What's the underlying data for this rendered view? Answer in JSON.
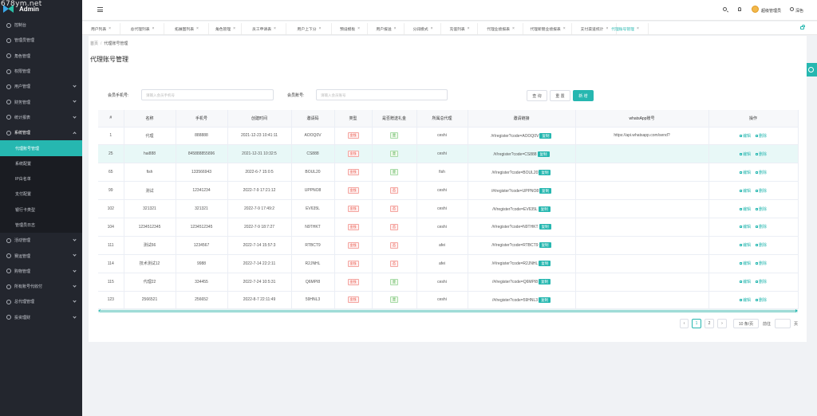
{
  "watermark": "678ym.net",
  "app": {
    "logo_text": "Admin"
  },
  "sidebar": {
    "items": [
      {
        "label": "控制台",
        "chevron": false
      },
      {
        "label": "管理员管理",
        "chevron": false
      },
      {
        "label": "角色管理",
        "chevron": false
      },
      {
        "label": "权限管理",
        "chevron": false
      },
      {
        "label": "用户管理",
        "chevron": true
      },
      {
        "label": "财务管理",
        "chevron": true
      },
      {
        "label": "统计报表",
        "chevron": true
      },
      {
        "label": "系统管理",
        "chevron": true,
        "open": true
      }
    ],
    "submenu": [
      {
        "label": "代理账号管理",
        "active": true
      },
      {
        "label": "系统配置"
      },
      {
        "label": "IP白名单"
      },
      {
        "label": "支付配置"
      },
      {
        "label": "银行卡类型"
      },
      {
        "label": "管理员日志"
      }
    ],
    "items_after": [
      {
        "label": "活动管理",
        "chevron": true
      },
      {
        "label": "赛运管理",
        "chevron": true
      },
      {
        "label": "购物管理",
        "chevron": true
      },
      {
        "label": "所有账号代收付",
        "chevron": true
      },
      {
        "label": "总代理管理",
        "chevron": true
      },
      {
        "label": "投资理财",
        "chevron": true
      }
    ]
  },
  "header": {
    "user": "超级管理员",
    "theme": "深色"
  },
  "tabs": [
    {
      "label": "用户列表",
      "active": false
    },
    {
      "label": "总代理列表",
      "active": false
    },
    {
      "label": "拓展图列表",
      "active": false
    },
    {
      "label": "角色管理",
      "active": false
    },
    {
      "label": "员工申请表",
      "active": false
    },
    {
      "label": "用户上下分",
      "active": false
    },
    {
      "label": "预设模板",
      "active": false
    },
    {
      "label": "用户报送",
      "active": false
    },
    {
      "label": "分润模式",
      "active": false
    },
    {
      "label": "充值列表",
      "active": false
    },
    {
      "label": "代理业绩报表",
      "active": false
    },
    {
      "label": "代理新朋业绩报表",
      "active": false
    },
    {
      "label": "支付渠道统计",
      "active": false
    },
    {
      "label": "代理账号管理",
      "active": true
    }
  ],
  "breadcrumb": {
    "home": "首页",
    "current": "代理账号管理"
  },
  "page_title": "代理账号管理",
  "filters": {
    "phone_label": "会员手机号:",
    "phone_placeholder": "请输入会员手机号",
    "account_label": "会员账号:",
    "account_placeholder": "请输入会员账号",
    "query": "查 询",
    "reset": "重 置",
    "add": "新 增"
  },
  "table": {
    "headers": [
      "#",
      "名称",
      "手机号",
      "创建时间",
      "邀请码",
      "类型",
      "是否赠送礼金",
      "所属总代理",
      "邀请链接",
      "whatsApp账号",
      "操作"
    ],
    "copy_label": "复制",
    "edit_label": "编辑",
    "delete_label": "删除",
    "rows": [
      {
        "id": "1",
        "name": "代理",
        "phone": "888888",
        "created": "2021-12-23 10:41:11",
        "code": "AOOQ0V",
        "type": "金钱",
        "gift": "是",
        "agent": "ceshi",
        "link": "/#/register?code=AOOQ0V",
        "whatsapp": "https://api.whatsapp.com/send?"
      },
      {
        "id": "25",
        "name": "hai888",
        "phone": "845888855896",
        "created": "2021-12-31 10:32:5",
        "code": "CS888",
        "type": "金钱",
        "gift": "是",
        "agent": "ceshi",
        "link": "/#/register?code=CS888",
        "whatsapp": "",
        "highlight": true
      },
      {
        "id": "65",
        "name": "fish",
        "phone": "133566943",
        "created": "2022-6-7 15:0:5",
        "code": "BOUL20",
        "type": "金钱",
        "gift": "是",
        "agent": "fish",
        "link": "/#/register?code=BOUL20",
        "whatsapp": ""
      },
      {
        "id": "99",
        "name": "测试",
        "phone": "12341234",
        "created": "2022-7-9 17:21:12",
        "code": "UPPNO8",
        "type": "金钱",
        "gift": "否",
        "agent": "ceshi",
        "link": "/#/register?code=UPPNO8",
        "whatsapp": ""
      },
      {
        "id": "102",
        "name": "321321",
        "phone": "321321",
        "created": "2022-7-9 17:49:2",
        "code": "EV635L",
        "type": "金钱",
        "gift": "否",
        "agent": "ceshi",
        "link": "/#/register?code=EV635L",
        "whatsapp": ""
      },
      {
        "id": "104",
        "name": "1234512345",
        "phone": "1234512345",
        "created": "2022-7-9 18:7:27",
        "code": "N9THKT",
        "type": "金钱",
        "gift": "否",
        "agent": "ceshi",
        "link": "/#/register?code=N9THKT",
        "whatsapp": ""
      },
      {
        "id": "111",
        "name": "测试66",
        "phone": "1234567",
        "created": "2022-7-14 15:57:3",
        "code": "RTBCT9",
        "type": "金钱",
        "gift": "否",
        "agent": "afei",
        "link": "/#/register?code=RTBCT9",
        "whatsapp": ""
      },
      {
        "id": "114",
        "name": "技术测试12",
        "phone": "9988",
        "created": "2022-7-14 22:2:11",
        "code": "R2JNHL",
        "type": "金钱",
        "gift": "否",
        "agent": "afei",
        "link": "/#/register?code=R2JNHL",
        "whatsapp": ""
      },
      {
        "id": "115",
        "name": "代理22",
        "phone": "334455",
        "created": "2022-7-24 10:5:31",
        "code": "Q6MPI8",
        "type": "金钱",
        "gift": "是",
        "agent": "ceshi",
        "link": "/#/register?code=Q6MPI8",
        "whatsapp": ""
      },
      {
        "id": "123",
        "name": "2566521",
        "phone": "256652",
        "created": "2022-8-7 22:11:49",
        "code": "59HNL3",
        "type": "金钱",
        "gift": "是",
        "agent": "ceshi",
        "link": "/#/register?code=59HNL3",
        "whatsapp": ""
      }
    ]
  },
  "pagination": {
    "prev": "‹",
    "next": "›",
    "pages": [
      "1",
      "2"
    ],
    "current": "1",
    "page_size": "10 条/页",
    "goto_label": "前往",
    "page_unit": "页"
  },
  "colors": {
    "accent": "#26b7b0",
    "sidebar_bg": "#23262e"
  },
  "icons": [
    "menu-icon",
    "search-icon",
    "bell-icon",
    "avatar",
    "theme-icon",
    "lock-icon",
    "settings-icon",
    "edit-icon",
    "delete-icon"
  ]
}
